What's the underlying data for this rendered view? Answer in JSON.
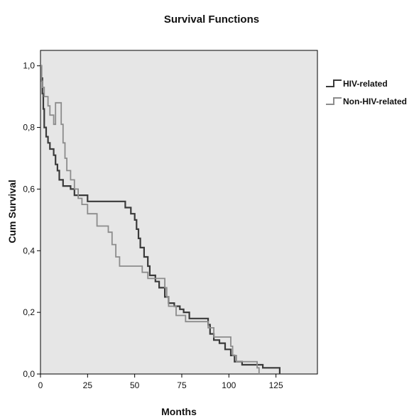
{
  "chart_data": {
    "type": "line",
    "title": "Survival Functions",
    "xlabel": "Months",
    "ylabel": "Cum Survival",
    "xlim": [
      0,
      147
    ],
    "ylim": [
      0,
      1.05
    ],
    "x_ticks": [
      0,
      25,
      50,
      75,
      100,
      125
    ],
    "y_ticks": [
      0,
      0.2,
      0.4,
      0.6,
      0.8,
      1.0
    ],
    "y_tick_labels": [
      "0,0",
      "0,2",
      "0,4",
      "0,6",
      "0,8",
      "1,0"
    ],
    "plot_background": "#e6e6e6",
    "grid": false,
    "legend_position": "right",
    "series": [
      {
        "name": "HIV-related",
        "color": "#3a3a3a",
        "step": true,
        "points": [
          [
            0,
            1.0
          ],
          [
            0.5,
            0.96
          ],
          [
            1,
            0.91
          ],
          [
            1.5,
            0.86
          ],
          [
            2,
            0.8
          ],
          [
            3,
            0.77
          ],
          [
            4,
            0.75
          ],
          [
            5,
            0.73
          ],
          [
            7,
            0.71
          ],
          [
            8,
            0.68
          ],
          [
            9,
            0.66
          ],
          [
            10,
            0.63
          ],
          [
            12,
            0.61
          ],
          [
            16,
            0.6
          ],
          [
            18,
            0.58
          ],
          [
            25,
            0.56
          ],
          [
            45,
            0.54
          ],
          [
            48,
            0.52
          ],
          [
            50,
            0.5
          ],
          [
            51,
            0.47
          ],
          [
            52,
            0.44
          ],
          [
            53,
            0.41
          ],
          [
            55,
            0.38
          ],
          [
            57,
            0.35
          ],
          [
            58,
            0.32
          ],
          [
            61,
            0.3
          ],
          [
            63,
            0.28
          ],
          [
            66,
            0.25
          ],
          [
            68,
            0.23
          ],
          [
            71,
            0.22
          ],
          [
            74,
            0.21
          ],
          [
            76,
            0.2
          ],
          [
            79,
            0.18
          ],
          [
            89,
            0.16
          ],
          [
            90,
            0.13
          ],
          [
            92,
            0.11
          ],
          [
            95,
            0.1
          ],
          [
            98,
            0.08
          ],
          [
            101,
            0.06
          ],
          [
            103,
            0.04
          ],
          [
            107,
            0.03
          ],
          [
            118,
            0.02
          ],
          [
            127,
            0.0
          ]
        ]
      },
      {
        "name": "Non-HIV-related",
        "color": "#8c8c8c",
        "step": true,
        "points": [
          [
            0,
            1.0
          ],
          [
            0.5,
            0.95
          ],
          [
            1,
            0.93
          ],
          [
            2,
            0.9
          ],
          [
            4,
            0.87
          ],
          [
            5,
            0.84
          ],
          [
            7,
            0.81
          ],
          [
            8,
            0.88
          ],
          [
            11,
            0.81
          ],
          [
            12,
            0.75
          ],
          [
            13,
            0.7
          ],
          [
            14,
            0.66
          ],
          [
            16,
            0.63
          ],
          [
            18,
            0.6
          ],
          [
            20,
            0.57
          ],
          [
            22,
            0.55
          ],
          [
            25,
            0.52
          ],
          [
            30,
            0.48
          ],
          [
            36,
            0.46
          ],
          [
            38,
            0.42
          ],
          [
            40,
            0.38
          ],
          [
            42,
            0.35
          ],
          [
            54,
            0.33
          ],
          [
            57,
            0.31
          ],
          [
            66,
            0.28
          ],
          [
            67,
            0.25
          ],
          [
            68,
            0.22
          ],
          [
            72,
            0.19
          ],
          [
            77,
            0.17
          ],
          [
            89,
            0.15
          ],
          [
            92,
            0.12
          ],
          [
            101,
            0.09
          ],
          [
            102,
            0.06
          ],
          [
            104,
            0.04
          ],
          [
            115,
            0.02
          ],
          [
            116,
            0.0
          ]
        ]
      }
    ]
  }
}
